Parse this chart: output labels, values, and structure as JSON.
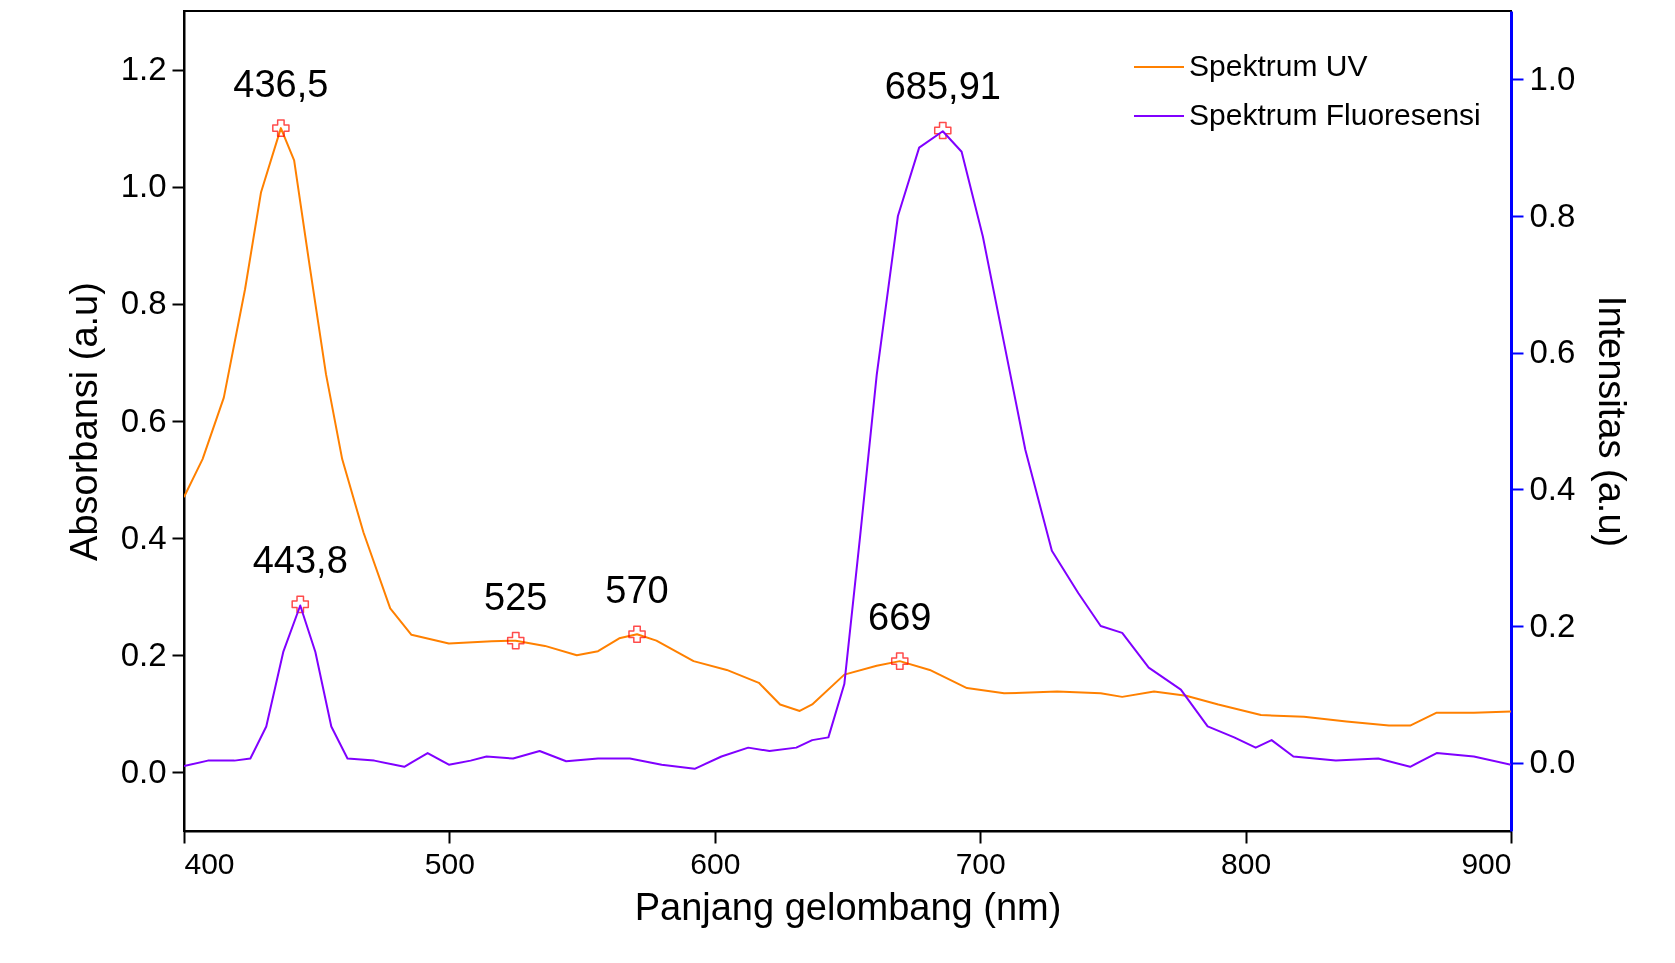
{
  "chart_data": {
    "type": "line",
    "xlabel": "Panjang gelombang (nm)",
    "ylabel": "Absorbansi (a.u)",
    "y2label": "Intensitas (a.u)",
    "xlim": [
      400,
      900
    ],
    "xticks": [
      400,
      500,
      600,
      700,
      800,
      900
    ],
    "ylim": [
      -0.1,
      1.3
    ],
    "yticks": [
      {
        "value": 0,
        "label": "0.0"
      },
      {
        "value": 0.2,
        "label": "0.2"
      },
      {
        "value": 0.4,
        "label": "0.4"
      },
      {
        "value": 0.6,
        "label": "0.6"
      },
      {
        "value": 0.8,
        "label": "0.8"
      },
      {
        "value": 1.0,
        "label": "1.0"
      },
      {
        "value": 1.2,
        "label": "1.2"
      }
    ],
    "y2lim": [
      -0.1,
      1.1
    ],
    "y2ticks": [
      {
        "value": 0,
        "label": "0.0"
      },
      {
        "value": 0.2,
        "label": "0.2"
      },
      {
        "value": 0.4,
        "label": "0.4"
      },
      {
        "value": 0.6,
        "label": "0.6"
      },
      {
        "value": 0.8,
        "label": "0.8"
      },
      {
        "value": 1.0,
        "label": "1.0"
      }
    ],
    "legend": "top right",
    "grid": false,
    "series": [
      {
        "name": "Spektrum UV",
        "color": "#ff8000",
        "x": [
          400,
          407,
          415,
          423,
          429,
          436.5,
          441.5,
          447.5,
          453.5,
          459.6,
          467.6,
          477.7,
          485.7,
          499.8,
          516,
          525,
          536,
          548,
          556,
          564,
          570.7,
          578,
          592,
          604.5,
          616.6,
          624.6,
          632,
          636.7,
          648.8,
          661,
          669.7,
          681,
          695,
          709,
          729,
          745.4,
          753.5,
          765.5,
          777.6,
          789.7,
          805.8,
          822,
          838,
          854,
          862,
          872,
          886,
          900
        ],
        "values": [
          0.47,
          0.535,
          0.64,
          0.825,
          0.99,
          1.1,
          1.045,
          0.86,
          0.68,
          0.535,
          0.41,
          0.28,
          0.235,
          0.22,
          0.224,
          0.225,
          0.216,
          0.2,
          0.207,
          0.229,
          0.236,
          0.225,
          0.19,
          0.175,
          0.153,
          0.116,
          0.105,
          0.116,
          0.167,
          0.182,
          0.19,
          0.175,
          0.144,
          0.135,
          0.138,
          0.135,
          0.129,
          0.138,
          0.131,
          0.116,
          0.098,
          0.095,
          0.087,
          0.08,
          0.08,
          0.102,
          0.102,
          0.104
        ]
      },
      {
        "name": "Spektrum Fluoresensi",
        "color": "#8000ff",
        "axis": "y2",
        "x": [
          400,
          409,
          419,
          425,
          431,
          437.4,
          443.8,
          449.5,
          455.5,
          461.6,
          471.7,
          483,
          491.8,
          499.8,
          508,
          514,
          524,
          534,
          544,
          556,
          568,
          580,
          592.4,
          602.5,
          612.6,
          620.6,
          630.7,
          636.7,
          642.8,
          648.8,
          654.8,
          661,
          669,
          677,
          685.9,
          693,
          701,
          709,
          717,
          727,
          737,
          745.4,
          753.5,
          763.5,
          775.6,
          785.7,
          795.7,
          803.8,
          809.8,
          818,
          834,
          850,
          862,
          872,
          886,
          900
        ],
        "values": [
          -0.005,
          0.003,
          0.003,
          0.006,
          0.053,
          0.162,
          0.23,
          0.162,
          0.053,
          0.006,
          0.003,
          -0.006,
          0.014,
          -0.003,
          0.003,
          0.009,
          0.006,
          0.017,
          0.002,
          0.006,
          0.006,
          -0.003,
          -0.009,
          0.009,
          0.022,
          0.017,
          0.022,
          0.033,
          0.037,
          0.115,
          0.333,
          0.567,
          0.8,
          0.9,
          0.924,
          0.894,
          0.77,
          0.614,
          0.458,
          0.31,
          0.248,
          0.2,
          0.19,
          0.139,
          0.107,
          0.053,
          0.037,
          0.022,
          0.033,
          0.009,
          0.003,
          0.006,
          -0.006,
          0.014,
          0.009,
          -0.003
        ]
      }
    ],
    "annotations": [
      {
        "text": "436,5",
        "x": 436.5,
        "y": 1.1
      },
      {
        "text": "443,8",
        "x": 443.8,
        "y": 0.287
      },
      {
        "text": "525",
        "x": 525,
        "y": 0.225
      },
      {
        "text": "570",
        "x": 570.7,
        "y": 0.236
      },
      {
        "text": "669",
        "x": 669.7,
        "y": 0.19
      },
      {
        "text": "685,91",
        "x": 685.9,
        "y": 1.096
      }
    ]
  }
}
